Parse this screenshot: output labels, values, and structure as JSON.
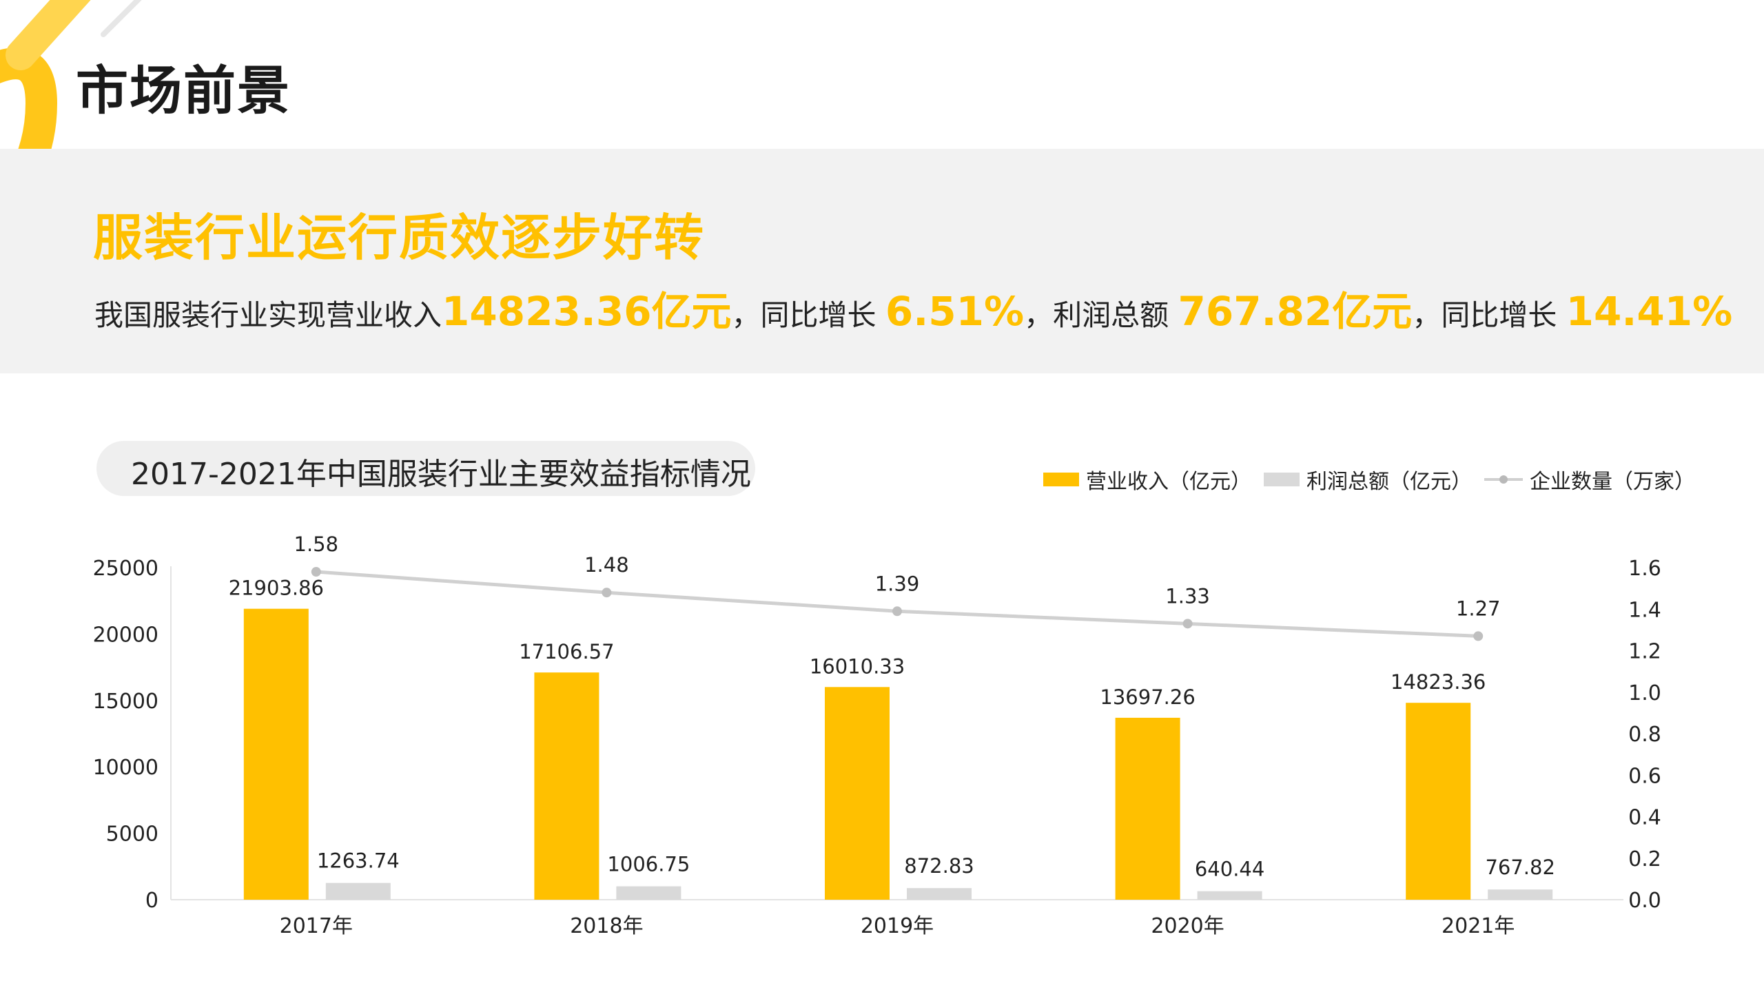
{
  "page": {
    "title": "市场前景",
    "headline": "服装行业运行质效逐步好转",
    "summary": {
      "t1": "我国服装行业实现营业收入",
      "v1": "14823.36亿元",
      "t2": "，同比增长 ",
      "v2": "6.51%",
      "t3": "，利润总额 ",
      "v3": "767.82亿元",
      "t4": "，同比增长 ",
      "v4": "14.41%"
    }
  },
  "colors": {
    "accent": "#FFC000",
    "profit": "#D9D9D9",
    "line": "#D0D0D0",
    "marker": "#BFBFBF"
  },
  "chart_data": {
    "type": "bar",
    "title": "2017-2021年中国服装行业主要效益指标情况",
    "legend_position": "top-right",
    "categories": [
      "2017年",
      "2018年",
      "2019年",
      "2020年",
      "2021年"
    ],
    "series": [
      {
        "name": "营业收入（亿元）",
        "type": "bar",
        "axis": "left",
        "values": [
          21903.86,
          17106.57,
          16010.33,
          13697.26,
          14823.36
        ]
      },
      {
        "name": "利润总额（亿元）",
        "type": "bar",
        "axis": "left",
        "values": [
          1263.74,
          1006.75,
          872.83,
          640.44,
          767.82
        ]
      },
      {
        "name": "企业数量（万家）",
        "type": "line",
        "axis": "right",
        "values": [
          1.58,
          1.48,
          1.39,
          1.33,
          1.27
        ]
      }
    ],
    "ylim": [
      0,
      25000
    ],
    "y_ticks": [
      0,
      5000,
      10000,
      15000,
      20000,
      25000
    ],
    "y2lim": [
      0,
      1.6
    ],
    "y2_ticks": [
      "0.0",
      "0.2",
      "0.4",
      "0.6",
      "0.8",
      "1.0",
      "1.2",
      "1.4",
      "1.6"
    ],
    "grid": false
  }
}
